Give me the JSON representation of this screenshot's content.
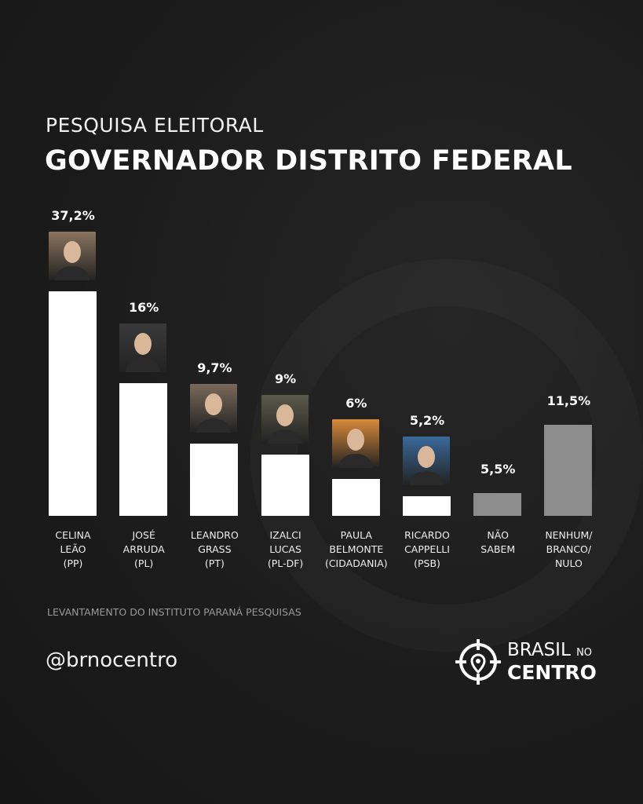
{
  "header": {
    "subtitle": "PESQUISA ELEITORAL",
    "title": "GOVERNADOR DISTRITO FEDERAL"
  },
  "chart_data": {
    "type": "bar",
    "categories": [
      [
        "CELINA",
        "LEÃO",
        "(PP)"
      ],
      [
        "JOSÉ",
        "ARRUDA",
        "(PL)"
      ],
      [
        "LEANDRO",
        "GRASS",
        "(PT)"
      ],
      [
        "IZALCI",
        "LUCAS",
        "(PL-DF)"
      ],
      [
        "PAULA",
        "BELMONTE",
        "(CIDADANIA)"
      ],
      [
        "RICARDO",
        "CAPPELLI",
        "(PSB)"
      ],
      [
        "NÃO",
        "SABEM"
      ],
      [
        "NENHUM/",
        "BRANCO/",
        "NULO"
      ]
    ],
    "values": [
      37.2,
      16,
      9.7,
      9,
      6,
      5.2,
      5.5,
      11.5
    ],
    "value_labels": [
      "37,2%",
      "16%",
      "9,7%",
      "9%",
      "6%",
      "5,2%",
      "5,5%",
      "11,5%"
    ],
    "has_photo": [
      true,
      true,
      true,
      true,
      true,
      true,
      false,
      false
    ],
    "bar_colors": [
      "#ffffff",
      "#ffffff",
      "#ffffff",
      "#ffffff",
      "#ffffff",
      "#ffffff",
      "#8c8c8c",
      "#8c8c8c"
    ],
    "photo_colors": [
      "#8a7560",
      "#3a3a3a",
      "#7a6a5a",
      "#5a5a4a",
      "#d98a3a",
      "#3a6a9a"
    ],
    "grid": false,
    "legend": "none"
  },
  "footer": {
    "source": "LEVANTAMENTO DO INSTITUTO PARANÁ PESQUISAS",
    "handle": "@brnocentro",
    "logo_line1": "BRASIL",
    "logo_no": "NO",
    "logo_line2": "CENTRO"
  }
}
